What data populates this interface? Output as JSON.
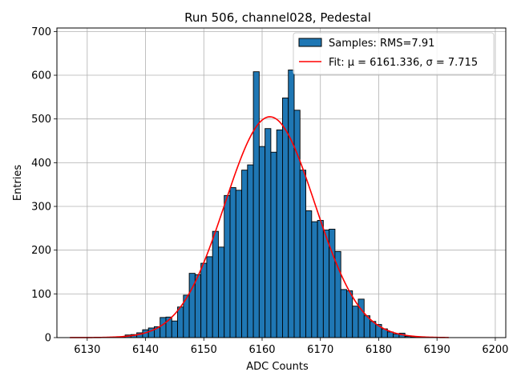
{
  "chart_data": {
    "type": "histogram",
    "title": "Run 506, channel028, Pedestal",
    "xlabel": "ADC Counts",
    "ylabel": "Entries",
    "xlim": [
      6124.8,
      6201.8
    ],
    "ylim": [
      0,
      708
    ],
    "xticks": [
      6130,
      6140,
      6150,
      6160,
      6170,
      6180,
      6190,
      6200
    ],
    "yticks": [
      0,
      100,
      200,
      300,
      400,
      500,
      600,
      700
    ],
    "grid": true,
    "legend_position": "top-right",
    "bin_width": 1,
    "bar_color": "#1f77b4",
    "fit_color": "#ff0000",
    "series": [
      {
        "name": "Samples: RMS=7.91",
        "type": "bar",
        "bins": [
          {
            "x": 6134,
            "y": 1
          },
          {
            "x": 6135,
            "y": 1
          },
          {
            "x": 6136,
            "y": 2
          },
          {
            "x": 6137,
            "y": 6
          },
          {
            "x": 6138,
            "y": 7
          },
          {
            "x": 6139,
            "y": 11
          },
          {
            "x": 6140,
            "y": 18
          },
          {
            "x": 6141,
            "y": 22
          },
          {
            "x": 6142,
            "y": 25
          },
          {
            "x": 6143,
            "y": 46
          },
          {
            "x": 6144,
            "y": 47
          },
          {
            "x": 6145,
            "y": 38
          },
          {
            "x": 6146,
            "y": 70
          },
          {
            "x": 6147,
            "y": 97
          },
          {
            "x": 6148,
            "y": 147
          },
          {
            "x": 6149,
            "y": 144
          },
          {
            "x": 6150,
            "y": 170
          },
          {
            "x": 6151,
            "y": 185
          },
          {
            "x": 6152,
            "y": 243
          },
          {
            "x": 6153,
            "y": 207
          },
          {
            "x": 6154,
            "y": 325
          },
          {
            "x": 6155,
            "y": 343
          },
          {
            "x": 6156,
            "y": 337
          },
          {
            "x": 6157,
            "y": 383
          },
          {
            "x": 6158,
            "y": 395
          },
          {
            "x": 6159,
            "y": 608
          },
          {
            "x": 6160,
            "y": 437
          },
          {
            "x": 6161,
            "y": 478
          },
          {
            "x": 6162,
            "y": 424
          },
          {
            "x": 6163,
            "y": 475
          },
          {
            "x": 6164,
            "y": 548
          },
          {
            "x": 6165,
            "y": 612
          },
          {
            "x": 6166,
            "y": 520
          },
          {
            "x": 6167,
            "y": 383
          },
          {
            "x": 6168,
            "y": 290
          },
          {
            "x": 6169,
            "y": 265
          },
          {
            "x": 6170,
            "y": 268
          },
          {
            "x": 6171,
            "y": 246
          },
          {
            "x": 6172,
            "y": 248
          },
          {
            "x": 6173,
            "y": 197
          },
          {
            "x": 6174,
            "y": 110
          },
          {
            "x": 6175,
            "y": 107
          },
          {
            "x": 6176,
            "y": 72
          },
          {
            "x": 6177,
            "y": 88
          },
          {
            "x": 6178,
            "y": 50
          },
          {
            "x": 6179,
            "y": 37
          },
          {
            "x": 6180,
            "y": 30
          },
          {
            "x": 6181,
            "y": 20
          },
          {
            "x": 6182,
            "y": 13
          },
          {
            "x": 6183,
            "y": 8
          },
          {
            "x": 6184,
            "y": 10
          },
          {
            "x": 6185,
            "y": 3
          },
          {
            "x": 6186,
            "y": 2
          },
          {
            "x": 6187,
            "y": 2
          }
        ]
      },
      {
        "name": "Fit: μ = 6161.336, σ = 7.715",
        "type": "line",
        "model": "gaussian",
        "mu": 6161.336,
        "sigma": 7.715,
        "amplitude": 505,
        "x_range": [
          6127,
          6192
        ]
      }
    ]
  }
}
